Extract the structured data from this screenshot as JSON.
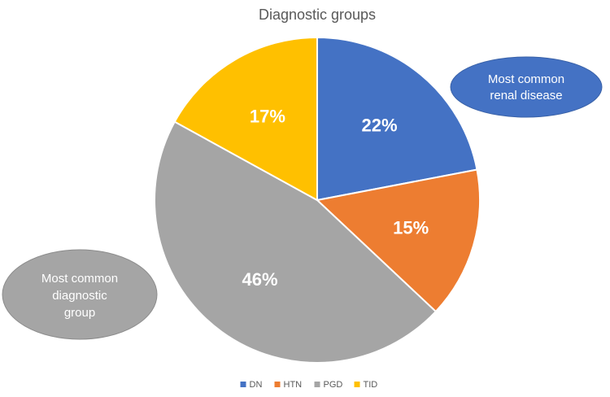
{
  "chart_data": {
    "type": "pie",
    "title": "Diagnostic groups",
    "categories": [
      "DN",
      "HTN",
      "PGD",
      "TID"
    ],
    "values": [
      22,
      15,
      46,
      17
    ],
    "labels": [
      "22%",
      "15%",
      "46%",
      "17%"
    ],
    "colors": [
      "#4472c4",
      "#ed7d31",
      "#a5a5a5",
      "#ffc000"
    ],
    "legend": "bottom"
  },
  "callouts": [
    {
      "lines": [
        "Most common",
        "renal disease"
      ],
      "color": "#4472c4"
    },
    {
      "lines": [
        "Most common",
        "diagnostic",
        "group"
      ],
      "color": "#a5a5a5"
    }
  ]
}
